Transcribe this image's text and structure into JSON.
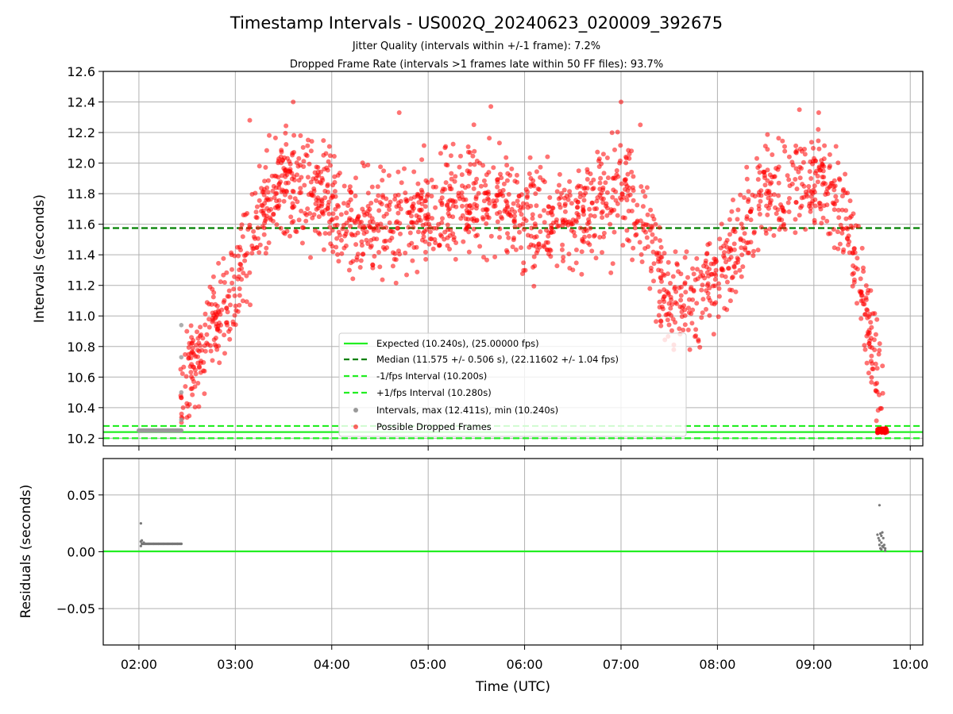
{
  "chart_data": [
    {
      "type": "scatter",
      "title": "Timestamp Intervals - US002Q_20240623_020009_392675",
      "subtitle_lines": [
        "Jitter Quality (intervals within +/-1 frame): 7.2%",
        "Dropped Frame Rate (intervals >1 frames late within 50 FF files): 93.7%"
      ],
      "ylabel": "Intervals (seconds)",
      "xlim_hours": [
        1.63,
        10.13
      ],
      "ylim": [
        10.15,
        12.6
      ],
      "yticks": [
        "10.2",
        "10.4",
        "10.6",
        "10.8",
        "11.0",
        "11.2",
        "11.4",
        "11.6",
        "11.8",
        "12.0",
        "12.2",
        "12.4",
        "12.6"
      ],
      "grid": true,
      "legend_position": "lower center",
      "reference_lines": [
        {
          "label": "Expected (10.240s), (25.00000 fps)",
          "y": 10.24,
          "style": "solid",
          "color": "#22ee22"
        },
        {
          "label": "Median (11.575 +/- 0.506 s), (22.11602 +/- 1.04 fps)",
          "y": 11.575,
          "style": "dashed",
          "color": "#008000"
        },
        {
          "label": "-1/fps Interval (10.200s)",
          "y": 10.2,
          "style": "dashed",
          "color": "#22ee22"
        },
        {
          "label": "+1/fps Interval (10.280s)",
          "y": 10.28,
          "style": "dashed",
          "color": "#22ee22"
        }
      ],
      "series": [
        {
          "name": "Intervals, max (12.411s), min (10.240s)",
          "color": "#999999",
          "points": [
            [
              2.0,
              10.25
            ],
            [
              2.05,
              10.25
            ],
            [
              2.1,
              10.25
            ],
            [
              2.15,
              10.25
            ],
            [
              2.2,
              10.25
            ],
            [
              2.25,
              10.25
            ],
            [
              2.3,
              10.25
            ],
            [
              2.35,
              10.25
            ],
            [
              2.4,
              10.25
            ],
            [
              2.44,
              10.25
            ],
            [
              2.44,
              10.32
            ],
            [
              2.44,
              10.5
            ],
            [
              2.44,
              10.73
            ],
            [
              2.44,
              10.94
            ]
          ]
        },
        {
          "name": "Possible Dropped Frames",
          "color": "#ff0000",
          "trend_knots": [
            [
              2.42,
              10.3
            ],
            [
              2.5,
              10.6
            ],
            [
              2.75,
              10.92
            ],
            [
              3.0,
              11.2
            ],
            [
              3.25,
              11.65
            ],
            [
              3.5,
              11.85
            ],
            [
              3.75,
              11.85
            ],
            [
              4.0,
              11.75
            ],
            [
              4.25,
              11.6
            ],
            [
              4.5,
              11.6
            ],
            [
              5.0,
              11.7
            ],
            [
              5.5,
              11.8
            ],
            [
              6.0,
              11.65
            ],
            [
              6.5,
              11.6
            ],
            [
              7.0,
              11.85
            ],
            [
              7.3,
              11.55
            ],
            [
              7.45,
              11.1
            ],
            [
              7.6,
              11.05
            ],
            [
              8.0,
              11.25
            ],
            [
              8.2,
              11.45
            ],
            [
              8.5,
              11.8
            ],
            [
              9.0,
              11.9
            ],
            [
              9.3,
              11.7
            ],
            [
              9.45,
              11.4
            ],
            [
              9.55,
              11.0
            ],
            [
              9.65,
              10.65
            ],
            [
              9.72,
              10.45
            ]
          ],
          "spread": 0.17,
          "extra_points": [
            [
              3.6,
              12.4
            ],
            [
              4.7,
              12.33
            ],
            [
              5.65,
              12.37
            ],
            [
              7.0,
              12.4
            ],
            [
              3.15,
              12.28
            ],
            [
              8.85,
              12.35
            ],
            [
              9.05,
              12.33
            ],
            [
              7.2,
              12.25
            ]
          ],
          "cluster": {
            "x_range": [
              9.66,
              9.76
            ],
            "y": 10.25
          }
        }
      ]
    },
    {
      "type": "scatter",
      "ylabel": "Residuals (seconds)",
      "xlabel": "Time (UTC)",
      "xlim_hours": [
        1.63,
        10.13
      ],
      "ylim": [
        -0.082,
        0.082
      ],
      "yticks": [
        "0.05",
        "0.00",
        "−0.05"
      ],
      "xticks": [
        "02:00",
        "03:00",
        "04:00",
        "05:00",
        "06:00",
        "07:00",
        "08:00",
        "09:00",
        "10:00"
      ],
      "grid": true,
      "zero_line_color": "#22ee22",
      "series": [
        {
          "name": "Residuals",
          "color": "#777777",
          "points": [
            [
              2.02,
              0.025
            ],
            [
              2.02,
              0.009
            ],
            [
              2.02,
              0.005
            ],
            [
              2.03,
              0.01
            ],
            [
              2.05,
              0.008
            ],
            [
              2.1,
              0.007
            ],
            [
              2.15,
              0.007
            ],
            [
              2.2,
              0.007
            ],
            [
              2.25,
              0.007
            ],
            [
              2.3,
              0.007
            ],
            [
              2.35,
              0.007
            ],
            [
              2.4,
              0.007
            ],
            [
              2.44,
              0.007
            ],
            [
              9.68,
              0.041
            ],
            [
              9.66,
              0.015
            ],
            [
              9.67,
              0.012
            ],
            [
              9.68,
              0.01
            ],
            [
              9.69,
              0.016
            ],
            [
              9.7,
              0.014
            ],
            [
              9.71,
              0.017
            ],
            [
              9.72,
              0.012
            ],
            [
              9.7,
              0.008
            ],
            [
              9.71,
              0.005
            ],
            [
              9.72,
              0.004
            ],
            [
              9.69,
              0.003
            ],
            [
              9.7,
              0.002
            ],
            [
              9.73,
              0.006
            ],
            [
              9.74,
              0.003
            ],
            [
              9.74,
              0.001
            ],
            [
              9.68,
              0.006
            ]
          ]
        }
      ]
    }
  ]
}
